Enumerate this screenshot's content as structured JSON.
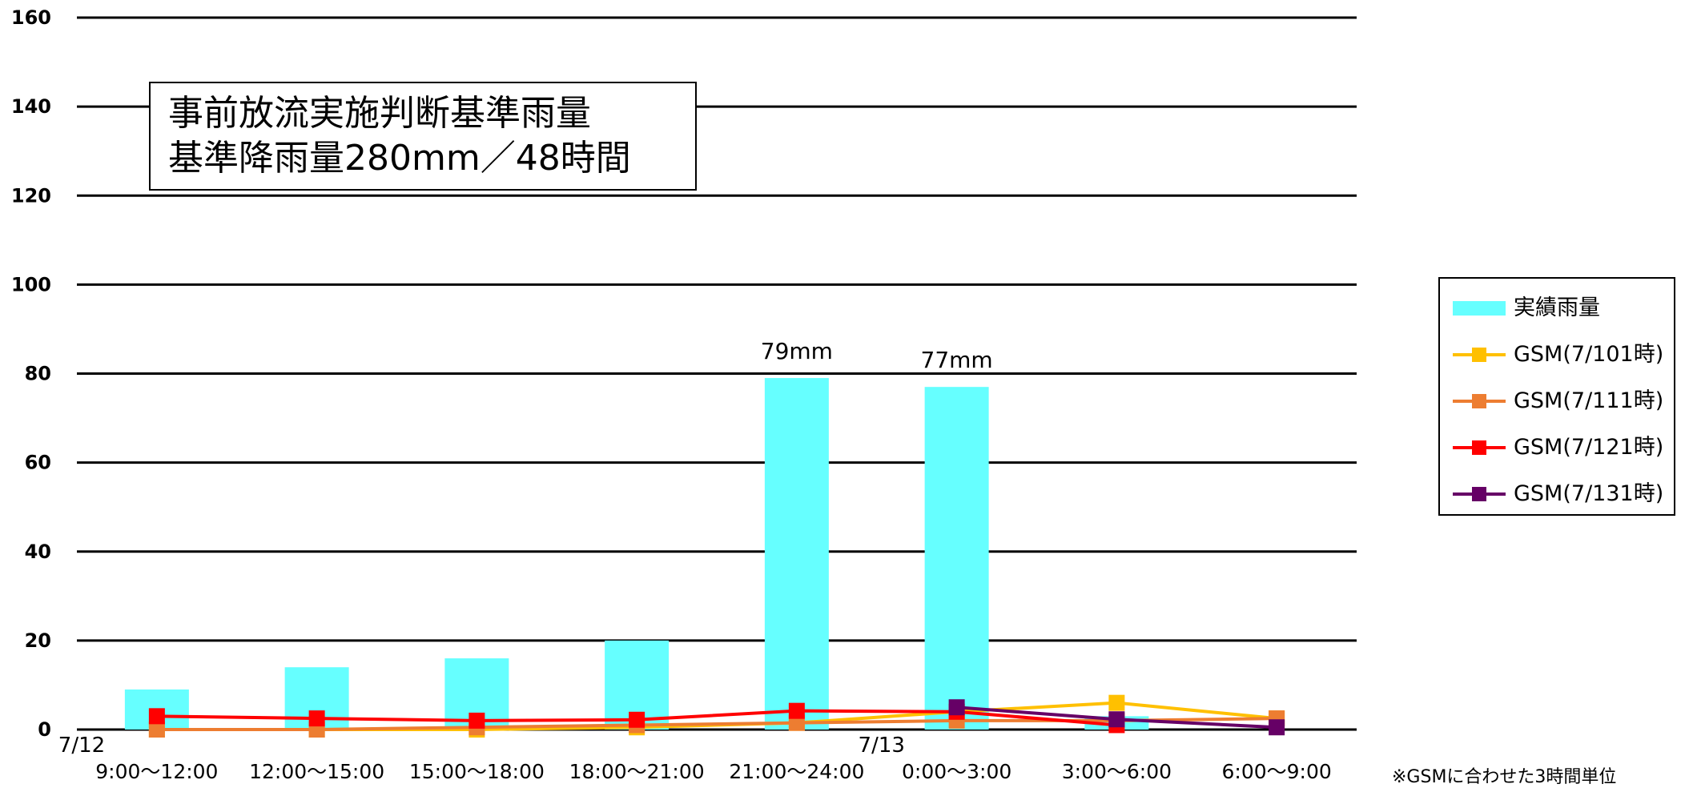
{
  "chart_data": {
    "type": "bar",
    "y_ticks": [
      "0",
      "20",
      "40",
      "60",
      "80",
      "100",
      "120",
      "140",
      "160"
    ],
    "ylim": [
      0,
      160
    ],
    "grid": true,
    "legend_position": "right",
    "categories": [
      "9:00～12:00",
      "12:00～15:00",
      "15:00～18:00",
      "18:00～21:00",
      "21:00～24:00",
      "0:00～3:00",
      "3:00～6:00",
      "6:00～9:00"
    ],
    "date_labels": [
      {
        "text": "7/12",
        "category_index": 0
      },
      {
        "text": "7/13",
        "category_index": 5
      }
    ],
    "bar_series": {
      "name": "実績雨量",
      "color": "#66ffff",
      "values": [
        9,
        14,
        16,
        20,
        79,
        77,
        3,
        null
      ],
      "data_labels": [
        null,
        null,
        null,
        null,
        "79mm",
        "77mm",
        null,
        null
      ]
    },
    "line_series": [
      {
        "name": "GSM(7/101時)",
        "color": "#ffc000",
        "marker": "square",
        "values": [
          0,
          0,
          0,
          0.5,
          1.5,
          4,
          6,
          2.5
        ]
      },
      {
        "name": "GSM(7/111時)",
        "color": "#ed7d31",
        "marker": "square",
        "values": [
          0,
          0,
          0.5,
          1,
          1.5,
          2,
          2,
          2.5
        ]
      },
      {
        "name": "GSM(7/121時)",
        "color": "#ff0000",
        "marker": "square",
        "values": [
          3,
          2.5,
          2,
          2.2,
          4.2,
          4,
          1,
          null
        ]
      },
      {
        "name": "GSM(7/131時)",
        "color": "#660066",
        "marker": "square",
        "values": [
          null,
          null,
          null,
          null,
          null,
          5,
          2.3,
          0.5
        ]
      }
    ]
  },
  "annotation": {
    "line1": "事前放流実施判断基準雨量",
    "line2": "基準降雨量280mm／48時間"
  },
  "footnote": "※GSMに合わせた3時間単位"
}
